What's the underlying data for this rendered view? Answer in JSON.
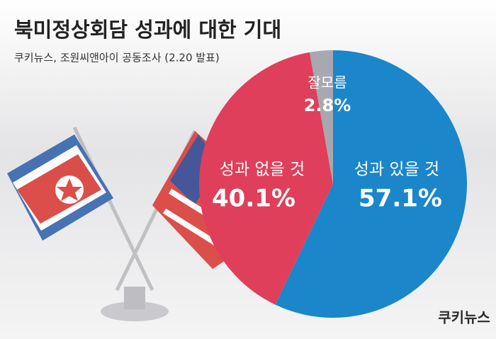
{
  "chart_data": {
    "type": "pie",
    "title": "북미정상회담 성과에 대한 기대",
    "subtitle": "쿠키뉴스, 조원씨앤아이 공동조사 (2.20  발표)",
    "categories": [
      "성과 있을 것",
      "성과 없을 것",
      "잘모름"
    ],
    "values": [
      57.1,
      40.1,
      2.8
    ],
    "value_labels": [
      "57.1%",
      "40.1%",
      "2.8%"
    ],
    "colors": [
      "#1b86c9",
      "#df3f5a",
      "#a7a8b0"
    ]
  },
  "logo": "쿠키뉴스"
}
